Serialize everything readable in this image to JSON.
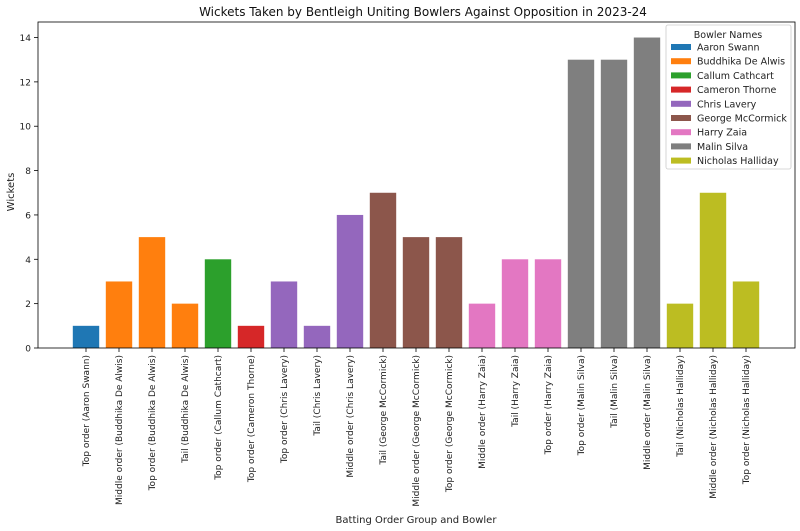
{
  "chart_data": {
    "type": "bar",
    "title": "Wickets Taken by Bentleigh Uniting Bowlers Against Opposition in 2023-24",
    "xlabel": "Batting Order Group and Bowler",
    "ylabel": "Wickets",
    "ylim": [
      0,
      14.7
    ],
    "yticks": [
      0,
      2,
      4,
      6,
      8,
      10,
      12,
      14
    ],
    "legend_title": "Bowler Names",
    "legend_position": "top-right",
    "categories": [
      "Top order (Aaron Swann)",
      "Middle order (Buddhika De Alwis)",
      "Top order (Buddhika De Alwis)",
      "Tail (Buddhika De Alwis)",
      "Top order (Callum Cathcart)",
      "Top order (Cameron Thorne)",
      "Top order (Chris Lavery)",
      "Tail (Chris Lavery)",
      "Middle order (Chris Lavery)",
      "Tail (George McCormick)",
      "Middle order (George McCormick)",
      "Top order (George McCormick)",
      "Middle order (Harry Zaia)",
      "Tail (Harry Zaia)",
      "Top order (Harry Zaia)",
      "Top order (Malin Silva)",
      "Tail (Malin Silva)",
      "Middle order (Malin Silva)",
      "Tail (Nicholas Halliday)",
      "Middle order (Nicholas Halliday)",
      "Top order (Nicholas Halliday)"
    ],
    "values": [
      1,
      3,
      5,
      2,
      4,
      1,
      3,
      1,
      6,
      7,
      5,
      5,
      2,
      4,
      4,
      13,
      13,
      14,
      2,
      7,
      3
    ],
    "bar_bowler": [
      "Aaron Swann",
      "Buddhika De Alwis",
      "Buddhika De Alwis",
      "Buddhika De Alwis",
      "Callum Cathcart",
      "Cameron Thorne",
      "Chris Lavery",
      "Chris Lavery",
      "Chris Lavery",
      "George McCormick",
      "George McCormick",
      "George McCormick",
      "Harry Zaia",
      "Harry Zaia",
      "Harry Zaia",
      "Malin Silva",
      "Malin Silva",
      "Malin Silva",
      "Nicholas Halliday",
      "Nicholas Halliday",
      "Nicholas Halliday"
    ],
    "series": [
      {
        "name": "Aaron Swann",
        "color": "#1f77b4"
      },
      {
        "name": "Buddhika De Alwis",
        "color": "#ff7f0e"
      },
      {
        "name": "Callum Cathcart",
        "color": "#2ca02c"
      },
      {
        "name": "Cameron Thorne",
        "color": "#d62728"
      },
      {
        "name": "Chris Lavery",
        "color": "#9467bd"
      },
      {
        "name": "George McCormick",
        "color": "#8c564b"
      },
      {
        "name": "Harry Zaia",
        "color": "#e377c2"
      },
      {
        "name": "Malin Silva",
        "color": "#7f7f7f"
      },
      {
        "name": "Nicholas Halliday",
        "color": "#bcbd22"
      }
    ]
  }
}
